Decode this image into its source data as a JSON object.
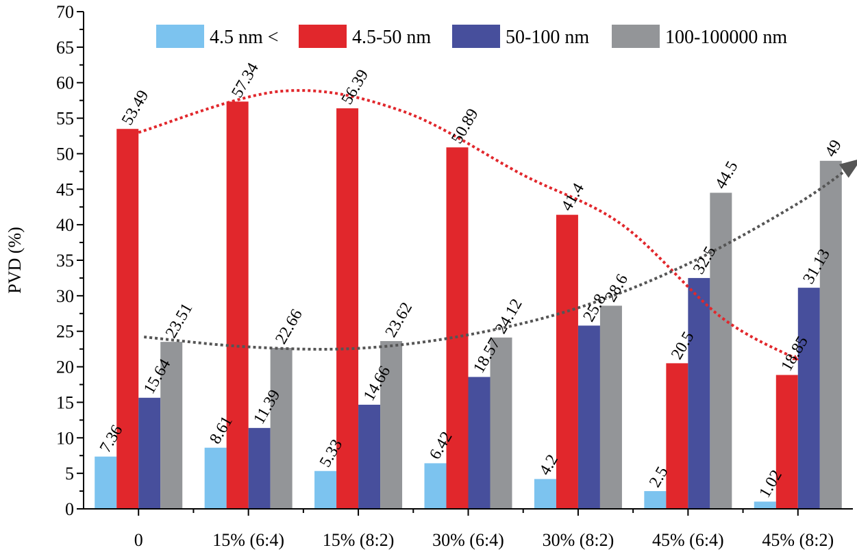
{
  "chart_data": {
    "type": "bar",
    "title": "",
    "xlabel": "",
    "ylabel": "PVD (%)",
    "ylim": [
      0,
      70
    ],
    "ytick_step": 5,
    "categories": [
      "0",
      "15% (6:4)",
      "15% (8:2)",
      "30% (6:4)",
      "30% (8:2)",
      "45% (6:4)",
      "45% (8:2)"
    ],
    "series": [
      {
        "name": "4.5 nm <",
        "color": "#7cc3ef",
        "values": [
          7.36,
          8.61,
          5.33,
          6.42,
          4.2,
          2.5,
          1.02
        ],
        "labels": [
          "7.36",
          "8.61",
          "5.33",
          "6.42",
          "4.2",
          "2.5",
          "1.02"
        ]
      },
      {
        "name": "4.5-50 nm",
        "color": "#e1272c",
        "values": [
          53.49,
          57.34,
          56.39,
          50.89,
          41.4,
          20.5,
          18.85
        ],
        "labels": [
          "53.49",
          "57.34",
          "56.39",
          "50.89",
          "41.4",
          "20.5",
          "18.85"
        ]
      },
      {
        "name": "50-100 nm",
        "color": "#474f9c",
        "values": [
          15.64,
          11.39,
          14.66,
          18.57,
          25.8,
          32.5,
          31.13
        ],
        "labels": [
          "15.64",
          "11.39",
          "14.66",
          "18.57",
          "25.8",
          "32.5",
          "31.13"
        ]
      },
      {
        "name": "100-100000 nm",
        "color": "#939598",
        "values": [
          23.51,
          22.66,
          23.62,
          24.12,
          28.6,
          44.5,
          49
        ],
        "labels": [
          "23.51",
          "22.66",
          "23.62",
          "24.12",
          "28.6",
          "44.5",
          "49"
        ]
      }
    ],
    "legend_position": "top",
    "trend_lines": [
      {
        "name": "4.5-50 nm trend",
        "color": "#e1272c",
        "style": "dotted",
        "points": [
          [
            0,
            53
          ],
          [
            1.3,
            58.8
          ],
          [
            2.4,
            56
          ],
          [
            3.5,
            47
          ],
          [
            4.4,
            40
          ],
          [
            5.3,
            27
          ],
          [
            6.0,
            21
          ]
        ]
      },
      {
        "name": "100-100000 nm trend",
        "color": "#555555",
        "style": "dotted",
        "points": [
          [
            0.05,
            24.2
          ],
          [
            1.0,
            22.8
          ],
          [
            2.0,
            22.6
          ],
          [
            3.0,
            24.5
          ],
          [
            4.0,
            28.3
          ],
          [
            5.0,
            34.5
          ],
          [
            6.0,
            43
          ],
          [
            6.55,
            49
          ]
        ]
      }
    ]
  }
}
